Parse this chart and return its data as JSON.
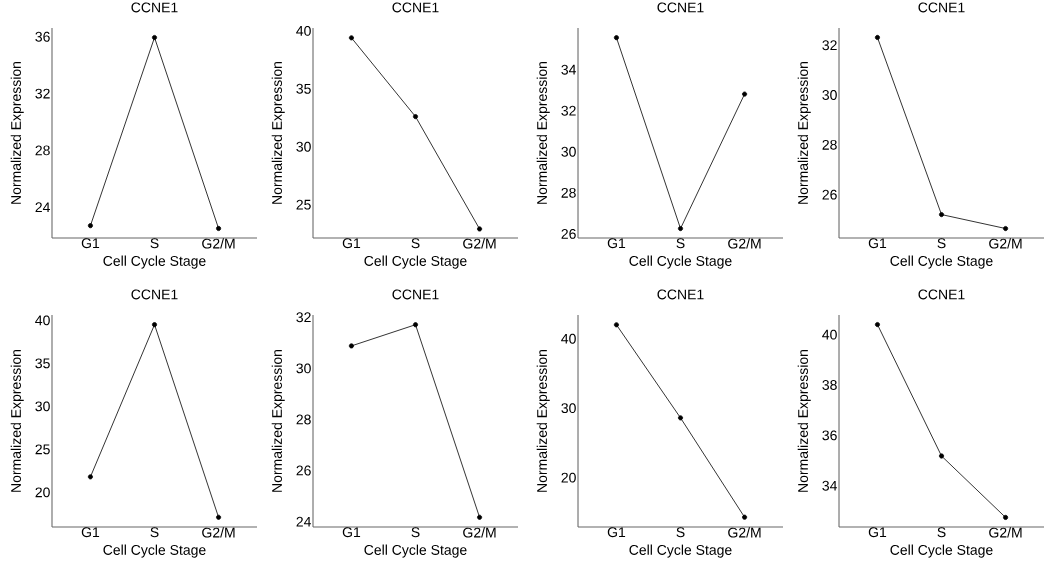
{
  "chart_data": [
    {
      "type": "line",
      "title": "CCNE1",
      "xlabel": "Cell Cycle Stage",
      "ylabel": "Normalized Expression",
      "categories": [
        "G1",
        "S",
        "G2/M"
      ],
      "values": [
        22.7,
        35.95,
        22.5
      ],
      "color": "#000000",
      "marker": "circle",
      "line_style": "solid",
      "ylim": [
        21.83,
        36.62
      ],
      "yticks": [
        24,
        28,
        32,
        36
      ]
    },
    {
      "type": "line",
      "title": "CCNE1",
      "xlabel": "Cell Cycle Stage",
      "ylabel": "Normalized Expression",
      "categories": [
        "G1",
        "S",
        "G2/M"
      ],
      "values": [
        39.4,
        32.6,
        22.9
      ],
      "color": "#000000",
      "marker": "circle",
      "line_style": "solid",
      "ylim": [
        22.12,
        40.25
      ],
      "yticks": [
        25,
        30,
        35,
        40
      ]
    },
    {
      "type": "line",
      "title": "CCNE1",
      "xlabel": "Cell Cycle Stage",
      "ylabel": "Normalized Expression",
      "categories": [
        "G1",
        "S",
        "G2/M"
      ],
      "values": [
        35.56,
        26.26,
        32.81
      ],
      "color": "#000000",
      "marker": "circle",
      "line_style": "solid",
      "ylim": [
        25.8,
        36.03
      ],
      "yticks": [
        26,
        28,
        30,
        32,
        34
      ]
    },
    {
      "type": "line",
      "title": "CCNE1",
      "xlabel": "Cell Cycle Stage",
      "ylabel": "Normalized Expression",
      "categories": [
        "G1",
        "S",
        "G2/M"
      ],
      "values": [
        32.31,
        25.2,
        24.64
      ],
      "color": "#000000",
      "marker": "circle",
      "line_style": "solid",
      "ylim": [
        24.26,
        32.69
      ],
      "yticks": [
        26,
        28,
        30,
        32
      ]
    },
    {
      "type": "line",
      "title": "CCNE1",
      "xlabel": "Cell Cycle Stage",
      "ylabel": "Normalized Expression",
      "categories": [
        "G1",
        "S",
        "G2/M"
      ],
      "values": [
        21.8,
        39.5,
        17.1
      ],
      "color": "#000000",
      "marker": "circle",
      "line_style": "solid",
      "ylim": [
        15.97,
        40.62
      ],
      "yticks": [
        20,
        25,
        30,
        35,
        40
      ]
    },
    {
      "type": "line",
      "title": "CCNE1",
      "xlabel": "Cell Cycle Stage",
      "ylabel": "Normalized Expression",
      "categories": [
        "G1",
        "S",
        "G2/M"
      ],
      "values": [
        30.88,
        31.71,
        24.17
      ],
      "color": "#000000",
      "marker": "circle",
      "line_style": "solid",
      "ylim": [
        23.79,
        32.09
      ],
      "yticks": [
        24,
        26,
        28,
        30,
        32
      ]
    },
    {
      "type": "line",
      "title": "CCNE1",
      "xlabel": "Cell Cycle Stage",
      "ylabel": "Normalized Expression",
      "categories": [
        "G1",
        "S",
        "G2/M"
      ],
      "values": [
        42.0,
        28.6,
        14.3
      ],
      "color": "#000000",
      "marker": "circle",
      "line_style": "solid",
      "ylim": [
        12.89,
        43.41
      ],
      "yticks": [
        20,
        30,
        40
      ]
    },
    {
      "type": "line",
      "title": "CCNE1",
      "xlabel": "Cell Cycle Stage",
      "ylabel": "Normalized Expression",
      "categories": [
        "G1",
        "S",
        "G2/M"
      ],
      "values": [
        40.4,
        35.18,
        32.74
      ],
      "color": "#000000",
      "marker": "circle",
      "line_style": "solid",
      "ylim": [
        32.36,
        40.78
      ],
      "yticks": [
        34,
        36,
        38,
        40
      ]
    }
  ]
}
